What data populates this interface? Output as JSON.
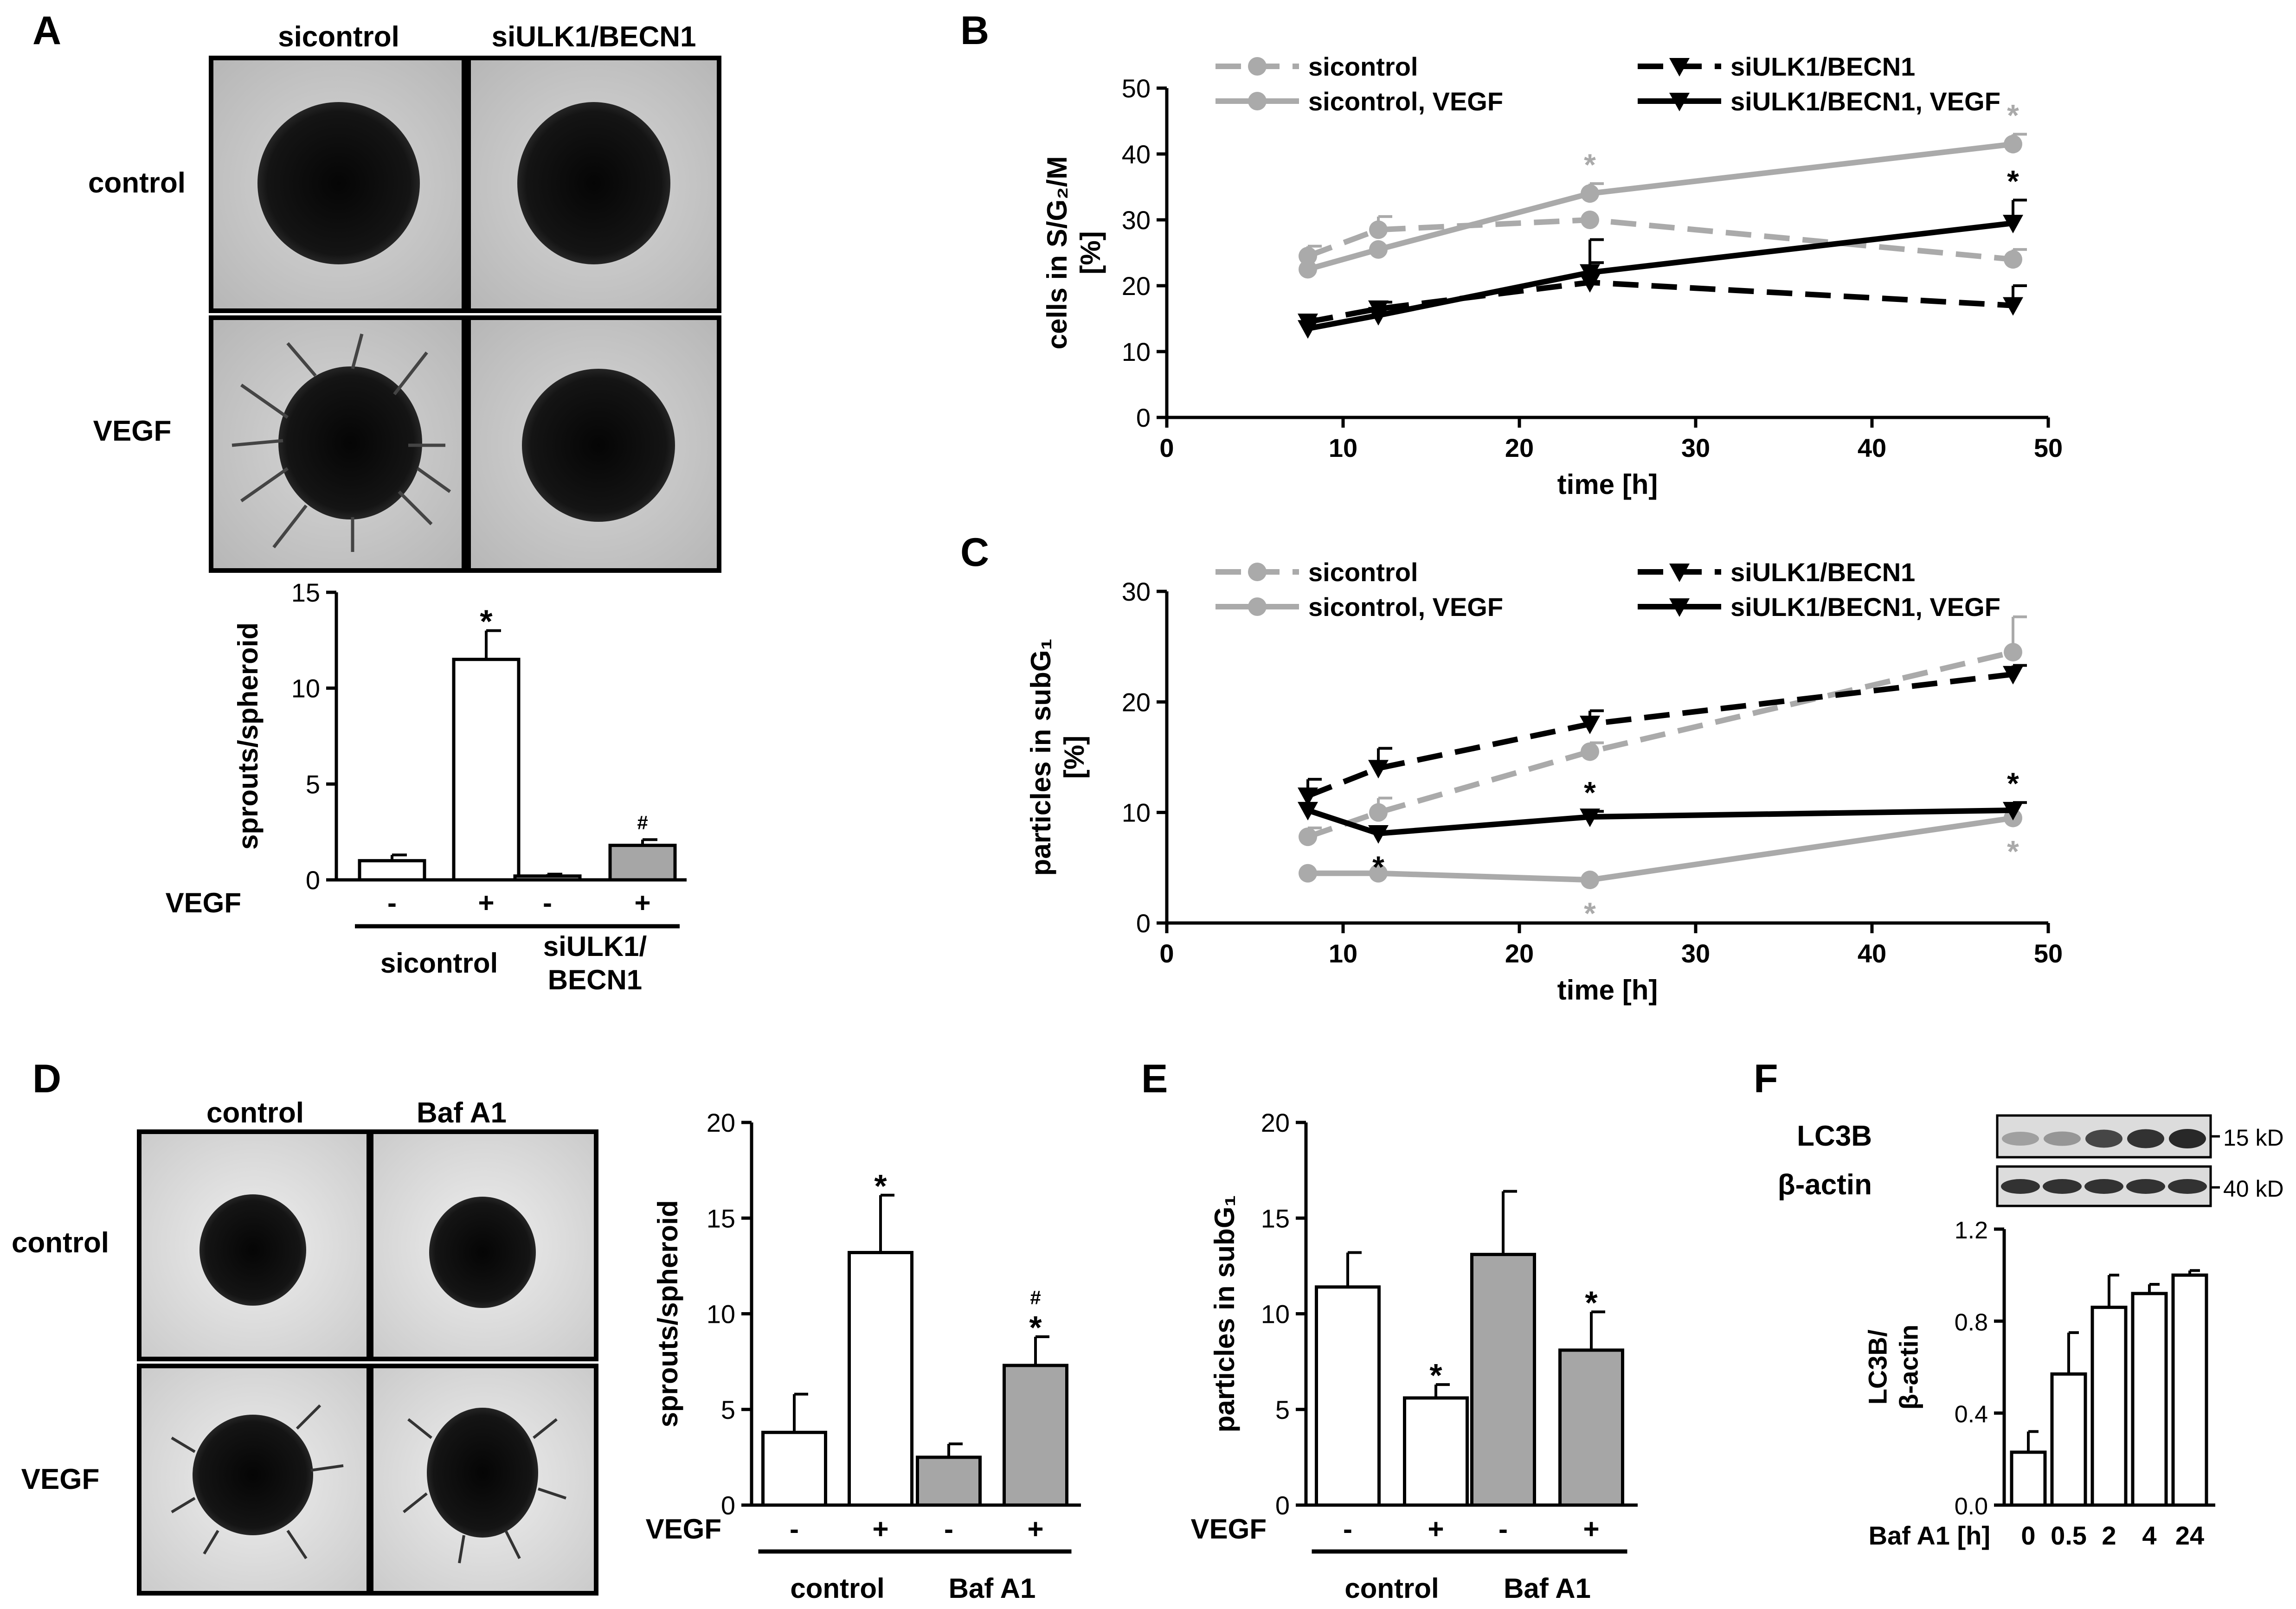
{
  "figure": {
    "panelA": {
      "letter": "A",
      "col_labels": [
        "sicontrol",
        "siULK1/BECN1"
      ],
      "row_labels": [
        "control",
        "VEGF"
      ]
    },
    "panelD": {
      "letter": "D",
      "col_labels": [
        "control",
        "Baf A1"
      ],
      "row_labels": [
        "control",
        "VEGF"
      ]
    },
    "panelB": {
      "letter": "B"
    },
    "panelC": {
      "letter": "C"
    },
    "panelE": {
      "letter": "E"
    },
    "panelF": {
      "letter": "F",
      "blot_labels": [
        "LC3B",
        "β-actin"
      ],
      "marker_labels": [
        "15 kD",
        "40 kD"
      ],
      "lc3b_band_darkness": [
        0.3,
        0.35,
        0.75,
        0.85,
        0.9
      ],
      "actin_band_darkness": [
        0.85,
        0.85,
        0.85,
        0.85,
        0.85
      ]
    },
    "colors": {
      "white_bar": "#ffffff",
      "grey_bar": "#a6a6a6",
      "grey_line": "#aaaaaa",
      "black_line": "#000000"
    }
  },
  "chart_data": [
    {
      "id": "A_bar",
      "type": "bar",
      "ylabel": "sprouts/spheroid",
      "ylim": [
        0,
        15
      ],
      "yticks": [
        0,
        5,
        10,
        15
      ],
      "values": [
        1.0,
        11.5,
        0.2,
        1.8
      ],
      "errors": [
        0.3,
        1.5,
        0.1,
        0.3
      ],
      "fills": [
        "white",
        "white",
        "grey",
        "grey"
      ],
      "annotations": [
        "",
        "*",
        "",
        "#"
      ],
      "row_label": "VEGF",
      "signs": [
        "-",
        "+",
        "-",
        "+"
      ],
      "groups": [
        "sicontrol",
        "siULK1/\nBECN1"
      ]
    },
    {
      "id": "B_line",
      "type": "line",
      "ylabel": "cells in S/G₂/M\n[%]",
      "xlabel": "time [h]",
      "xlim": [
        0,
        50
      ],
      "ylim": [
        0,
        50
      ],
      "xticks": [
        0,
        10,
        20,
        30,
        40,
        50
      ],
      "yticks": [
        0,
        10,
        20,
        30,
        40,
        50
      ],
      "x": [
        8,
        12,
        24,
        48
      ],
      "series": [
        {
          "name": "sicontrol",
          "color": "grey",
          "dash": true,
          "marker": "circle",
          "values": [
            24.5,
            28.5,
            30,
            24
          ],
          "errors": [
            1.5,
            2,
            0,
            1.5
          ]
        },
        {
          "name": "sicontrol, VEGF",
          "color": "grey",
          "dash": false,
          "marker": "circle",
          "values": [
            22.5,
            25.5,
            34,
            41.5
          ],
          "errors": [
            0,
            0,
            1.5,
            1.5
          ]
        },
        {
          "name": "siULK1/BECN1",
          "color": "black",
          "dash": true,
          "marker": "triangle",
          "values": [
            14.5,
            16.5,
            20.5,
            17
          ],
          "errors": [
            0.5,
            1,
            3,
            3
          ]
        },
        {
          "name": "siULK1/BECN1, VEGF",
          "color": "black",
          "dash": false,
          "marker": "triangle",
          "values": [
            13.5,
            15.5,
            22,
            29.5
          ],
          "errors": [
            0,
            0,
            5,
            3.5
          ]
        }
      ],
      "stars": [
        {
          "x": 24,
          "y": 34,
          "color": "grey"
        },
        {
          "x": 48,
          "y": 41.5,
          "color": "grey"
        },
        {
          "x": 48,
          "y": 29.5,
          "color": "black"
        }
      ]
    },
    {
      "id": "C_line",
      "type": "line",
      "ylabel": "particles in subG₁\n[%]",
      "xlabel": "time [h]",
      "xlim": [
        0,
        50
      ],
      "ylim": [
        0,
        30
      ],
      "xticks": [
        0,
        10,
        20,
        30,
        40,
        50
      ],
      "yticks": [
        0,
        10,
        20,
        30
      ],
      "x": [
        8,
        12,
        24,
        48
      ],
      "series": [
        {
          "name": "sicontrol",
          "color": "grey",
          "dash": true,
          "marker": "circle",
          "values": [
            7.8,
            10,
            15.5,
            24.5
          ],
          "errors": [
            0.8,
            1.3,
            0.8,
            3.2
          ]
        },
        {
          "name": "sicontrol, VEGF",
          "color": "grey",
          "dash": false,
          "marker": "circle",
          "values": [
            4.5,
            4.5,
            3.9,
            9.5
          ],
          "errors": [
            0,
            0,
            0,
            0
          ]
        },
        {
          "name": "siULK1/BECN1",
          "color": "black",
          "dash": true,
          "marker": "triangle",
          "values": [
            11.5,
            14,
            18,
            22.5
          ],
          "errors": [
            1.5,
            1.8,
            1.2,
            0.8
          ]
        },
        {
          "name": "siULK1/BECN1, VEGF",
          "color": "black",
          "dash": false,
          "marker": "triangle",
          "values": [
            10.2,
            8.1,
            9.6,
            10.2
          ],
          "errors": [
            0,
            0,
            0.5,
            0.7
          ]
        }
      ],
      "stars": [
        {
          "x": 12,
          "y": 8.1,
          "color": "black",
          "below": true
        },
        {
          "x": 24,
          "y": 9.6,
          "color": "black"
        },
        {
          "x": 48,
          "y": 10.2,
          "color": "black"
        },
        {
          "x": 24,
          "y": 3.9,
          "color": "grey",
          "below": true
        },
        {
          "x": 48,
          "y": 9.5,
          "color": "grey",
          "below": true
        }
      ]
    },
    {
      "id": "D_bar",
      "type": "bar",
      "ylabel": "sprouts/spheroid",
      "ylim": [
        0,
        20
      ],
      "yticks": [
        0,
        5,
        10,
        15,
        20
      ],
      "values": [
        3.8,
        13.2,
        2.5,
        7.3
      ],
      "errors": [
        2.0,
        3.0,
        0.7,
        1.5
      ],
      "fills": [
        "white",
        "white",
        "grey",
        "grey"
      ],
      "annotations": [
        "",
        "*",
        "",
        "*#"
      ],
      "row_label": "VEGF",
      "signs": [
        "-",
        "+",
        "-",
        "+"
      ],
      "groups": [
        "control",
        "Baf A1"
      ]
    },
    {
      "id": "E_bar",
      "type": "bar",
      "ylabel": "particles in subG₁",
      "ylim": [
        0,
        20
      ],
      "yticks": [
        0,
        5,
        10,
        15,
        20
      ],
      "values": [
        11.4,
        5.6,
        13.1,
        8.1
      ],
      "errors": [
        1.8,
        0.7,
        3.3,
        2.0
      ],
      "fills": [
        "white",
        "white",
        "grey",
        "grey"
      ],
      "annotations": [
        "",
        "*",
        "",
        "*"
      ],
      "row_label": "VEGF",
      "signs": [
        "-",
        "+",
        "-",
        "+"
      ],
      "groups": [
        "control",
        "Baf A1"
      ]
    },
    {
      "id": "F_bar",
      "type": "bar",
      "ylabel": "LC3B/\nβ-actin",
      "ylim": [
        0,
        1.2
      ],
      "yticks": [
        0.0,
        0.4,
        0.8,
        1.2
      ],
      "ytick_labels": [
        "0.0",
        "0.4",
        "0.8",
        "1.2"
      ],
      "values": [
        0.23,
        0.57,
        0.86,
        0.92,
        1.0
      ],
      "errors": [
        0.09,
        0.18,
        0.14,
        0.04,
        0.02
      ],
      "fills": [
        "white",
        "white",
        "white",
        "white",
        "white"
      ],
      "row_label": "Baf A1 [h]",
      "categories": [
        "0",
        "0.5",
        "2",
        "4",
        "24"
      ]
    }
  ]
}
